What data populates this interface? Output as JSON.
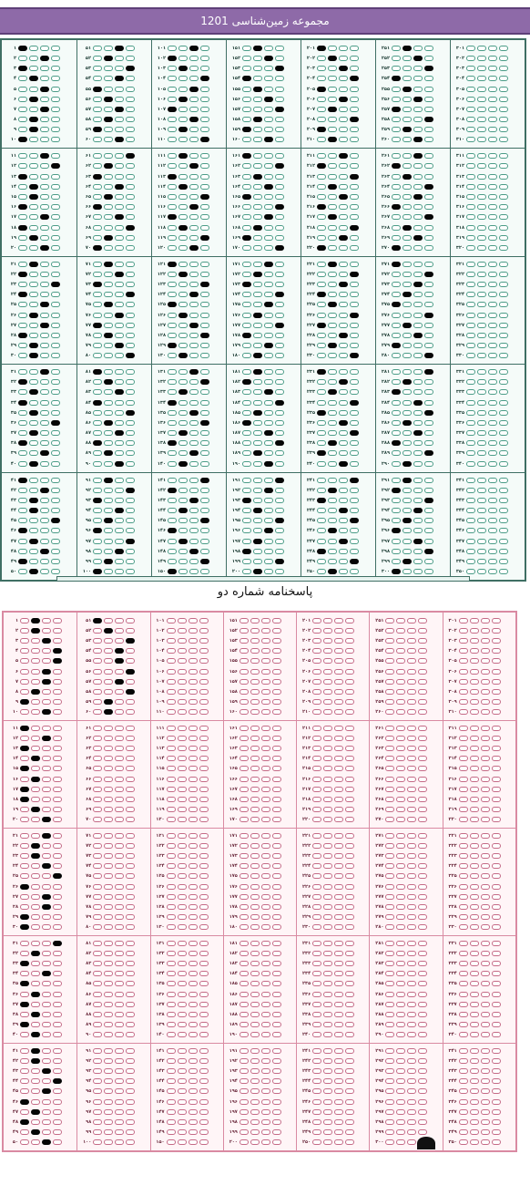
{
  "header": {
    "title": "مجموعه زمین‌شناسی 1201"
  },
  "caption": "پاسخنامه شماره دو",
  "colors": {
    "header_bg": "#8e6aa8",
    "sheet1_bg": "#f5fbf9",
    "sheet1_line": "#3f6f64",
    "sheet1_bubble": "#4b9c87",
    "sheet2_bg": "#fff5f7",
    "sheet2_line": "#d98aa2",
    "sheet2_bubble": "#c56a86",
    "filled": "#050505"
  },
  "sheet1_answers": [
    1,
    3,
    1,
    2,
    3,
    2,
    3,
    2,
    2,
    1,
    3,
    4,
    1,
    2,
    2,
    1,
    3,
    1,
    2,
    3,
    2,
    1,
    4,
    1,
    3,
    2,
    3,
    1,
    2,
    2,
    3,
    1,
    2,
    1,
    2,
    4,
    2,
    1,
    3,
    2,
    1,
    3,
    2,
    2,
    4,
    1,
    2,
    3,
    1,
    2,
    3,
    2,
    4,
    3,
    1,
    2,
    3,
    2,
    1,
    3,
    4,
    2,
    1,
    3,
    2,
    1,
    3,
    4,
    2,
    1,
    2,
    3,
    1,
    4,
    2,
    3,
    1,
    2,
    3,
    4,
    1,
    2,
    3,
    1,
    4,
    2,
    3,
    1,
    2,
    3,
    2,
    4,
    1,
    3,
    2,
    1,
    4,
    3,
    2,
    1,
    3,
    1,
    2,
    4,
    3,
    2,
    1,
    3,
    2,
    4,
    2,
    3,
    1,
    2,
    4,
    3,
    1,
    2,
    4,
    3,
    1,
    2,
    4,
    3,
    1,
    2,
    3,
    4,
    1,
    2,
    3,
    4,
    2,
    1,
    3,
    4,
    2,
    1,
    3,
    2,
    4,
    1,
    3,
    2,
    4,
    1,
    2,
    3,
    4,
    1,
    2,
    3,
    4,
    1,
    2,
    3,
    4,
    2,
    1,
    3,
    1,
    4,
    2,
    3,
    1,
    4,
    3,
    2,
    1,
    4,
    3,
    2,
    1,
    4,
    3,
    2,
    4,
    1,
    3,
    2,
    2,
    1,
    3,
    4,
    2,
    1,
    3,
    4,
    2,
    3,
    4,
    3,
    1,
    2,
    4,
    3,
    2,
    1,
    4,
    2,
    1,
    2,
    3,
    4,
    1,
    3,
    2,
    4,
    1,
    2,
    3,
    1,
    4,
    2,
    3,
    1,
    2,
    4,
    3,
    1,
    2,
    4,
    3,
    1,
    2,
    4,
    1,
    3,
    2,
    4,
    1,
    3,
    2,
    4,
    1,
    3,
    4,
    2,
    1,
    3,
    4,
    2,
    1,
    3,
    4,
    2,
    3,
    1,
    4,
    2,
    2,
    3,
    4,
    1,
    2,
    3,
    1,
    4,
    2,
    3,
    3,
    1,
    2,
    4,
    3,
    1,
    4,
    2,
    3,
    1,
    1,
    4,
    3,
    2,
    1,
    4,
    2,
    3,
    1,
    4,
    4,
    2,
    1,
    3,
    4,
    2,
    3,
    1,
    4,
    2,
    2,
    1,
    4,
    3,
    2,
    1,
    3,
    4,
    2,
    1
  ],
  "sheet2_answers": [
    2,
    2,
    3,
    4,
    4,
    3,
    3,
    2,
    1,
    3,
    1,
    3,
    1,
    2,
    1,
    2,
    1,
    1,
    2,
    3,
    3,
    2,
    2,
    3,
    4,
    1,
    3,
    3,
    1,
    1,
    4,
    2,
    1,
    3,
    1,
    2,
    1,
    2,
    1,
    2,
    2,
    2,
    3,
    4,
    3,
    1,
    2,
    1,
    2,
    3,
    1,
    2,
    4,
    3,
    3,
    4,
    3,
    4,
    2,
    2
  ]
}
